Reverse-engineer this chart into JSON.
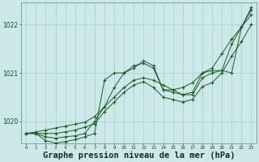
{
  "background_color": "#cce8e8",
  "grid_color": "#a8d0cc",
  "line_color": "#1a5c28",
  "xlabel": "Graphe pression niveau de la mer (hPa)",
  "xlabel_fontsize": 7.5,
  "ylim": [
    1019.55,
    1022.45
  ],
  "xlim": [
    -0.5,
    23.5
  ],
  "yticks": [
    1020.0,
    1021.0,
    1022.0
  ],
  "ytick_labels": [
    "1020",
    "1021",
    "1022"
  ],
  "xticks": [
    0,
    1,
    2,
    3,
    4,
    5,
    6,
    7,
    8,
    9,
    10,
    11,
    12,
    13,
    14,
    15,
    16,
    17,
    18,
    19,
    20,
    21,
    22,
    23
  ],
  "series": [
    {
      "x": [
        0,
        1,
        2,
        3,
        4,
        5,
        6,
        7,
        8,
        9,
        10,
        11,
        12,
        13,
        14,
        15,
        16,
        17,
        18,
        19,
        20,
        21,
        22,
        23
      ],
      "y": [
        1019.75,
        1019.78,
        1019.82,
        1019.86,
        1019.9,
        1019.94,
        1019.98,
        1020.1,
        1020.3,
        1020.5,
        1020.7,
        1020.85,
        1020.9,
        1020.85,
        1020.75,
        1020.65,
        1020.7,
        1020.8,
        1021.0,
        1021.1,
        1021.4,
        1021.7,
        1021.95,
        1022.3
      ]
    },
    {
      "x": [
        0,
        1,
        2,
        3,
        4,
        5,
        6,
        7,
        8,
        9,
        10,
        11,
        12,
        13,
        14,
        15,
        16,
        17,
        18,
        19,
        20,
        21,
        22,
        23
      ],
      "y": [
        1019.75,
        1019.75,
        1019.68,
        1019.65,
        1019.68,
        1019.7,
        1019.75,
        1020.0,
        1020.3,
        1020.7,
        1021.0,
        1021.1,
        1021.25,
        1021.15,
        1020.65,
        1020.6,
        1020.55,
        1020.6,
        1021.0,
        1021.05,
        1021.05,
        1021.0,
        1021.95,
        1022.2
      ]
    },
    {
      "x": [
        0,
        1,
        2,
        3,
        4,
        5,
        6,
        7,
        8,
        9,
        10,
        11,
        12,
        13,
        14,
        15,
        16,
        17,
        18,
        19,
        20,
        21,
        22,
        23
      ],
      "y": [
        1019.75,
        1019.75,
        1019.6,
        1019.55,
        1019.58,
        1019.62,
        1019.68,
        1019.75,
        1020.85,
        1021.0,
        1021.0,
        1021.15,
        1021.2,
        1021.1,
        1020.65,
        1020.65,
        1020.55,
        1020.55,
        1020.9,
        1021.0,
        1021.05,
        1021.6,
        1021.95,
        1022.35
      ]
    },
    {
      "x": [
        0,
        1,
        2,
        3,
        4,
        5,
        6,
        7,
        8,
        9,
        10,
        11,
        12,
        13,
        14,
        15,
        16,
        17,
        18,
        19,
        20,
        21,
        22,
        23
      ],
      "y": [
        1019.75,
        1019.75,
        1019.75,
        1019.75,
        1019.78,
        1019.82,
        1019.88,
        1019.95,
        1020.2,
        1020.4,
        1020.6,
        1020.75,
        1020.82,
        1020.7,
        1020.5,
        1020.45,
        1020.4,
        1020.45,
        1020.72,
        1020.8,
        1021.0,
        1021.35,
        1021.65,
        1022.0
      ]
    }
  ]
}
